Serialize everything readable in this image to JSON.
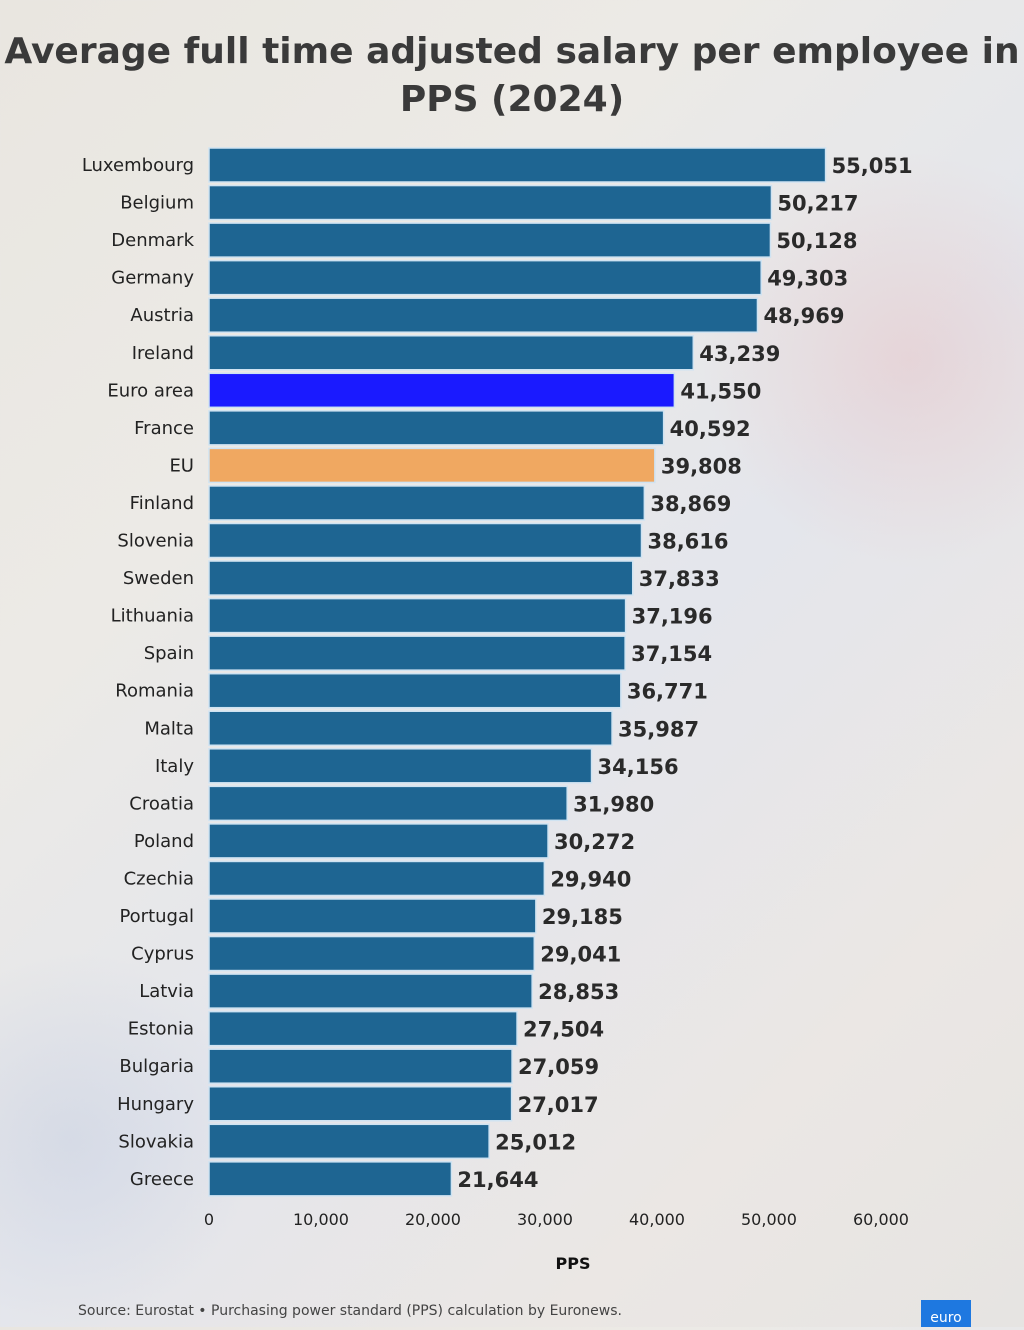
{
  "chart_data": {
    "type": "bar",
    "orientation": "horizontal",
    "title": "Average full time adjusted salary per employee in PPS (2024)",
    "xlabel": "PPS",
    "xlim": [
      0,
      60000
    ],
    "xticks": [
      "0",
      "10,000",
      "20,000",
      "30,000",
      "40,000",
      "50,000",
      "60,000"
    ],
    "grid": false,
    "categories": [
      "Luxembourg",
      "Belgium",
      "Denmark",
      "Germany",
      "Austria",
      "Ireland",
      "Euro area",
      "France",
      "EU",
      "Finland",
      "Slovenia",
      "Sweden",
      "Lithuania",
      "Spain",
      "Romania",
      "Malta",
      "Italy",
      "Croatia",
      "Poland",
      "Czechia",
      "Portugal",
      "Cyprus",
      "Latvia",
      "Estonia",
      "Bulgaria",
      "Hungary",
      "Slovakia",
      "Greece"
    ],
    "values": [
      55051,
      50217,
      50128,
      49303,
      48969,
      43239,
      41550,
      40592,
      39808,
      38869,
      38616,
      37833,
      37196,
      37154,
      36771,
      35987,
      34156,
      31980,
      30272,
      29940,
      29185,
      29041,
      28853,
      27504,
      27059,
      27017,
      25012,
      21644
    ],
    "value_labels": [
      "55,051",
      "50,217",
      "50,128",
      "49,303",
      "48,969",
      "43,239",
      "41,550",
      "40,592",
      "39,808",
      "38,869",
      "38,616",
      "37,833",
      "37,196",
      "37,154",
      "36,771",
      "35,987",
      "34,156",
      "31,980",
      "30,272",
      "29,940",
      "29,185",
      "29,041",
      "28,853",
      "27,504",
      "27,059",
      "27,017",
      "25,012",
      "21,644"
    ],
    "colors": {
      "default": "#1e6592",
      "Euro area": "#1a1aff",
      "EU": "#f0a861"
    }
  },
  "source": "Source: Eurostat • Purchasing power standard (PPS) calculation by Euronews.",
  "logo_text": "euro"
}
